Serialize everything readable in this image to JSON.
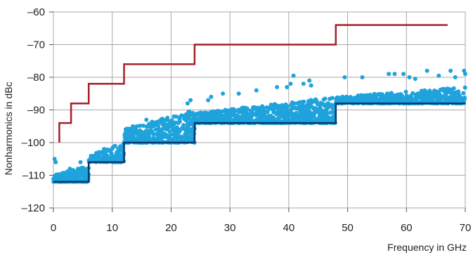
{
  "chart_data": {
    "type": "scatter",
    "title": "",
    "xlabel": "Frequency in GHz",
    "ylabel": "Nonharmonics in dBc",
    "xlim": [
      0,
      70
    ],
    "ylim": [
      -120,
      -60
    ],
    "xticks": [
      0,
      10,
      20,
      30,
      40,
      50,
      60,
      70
    ],
    "yticks": [
      -60,
      -70,
      -80,
      -90,
      -100,
      -110,
      -120
    ],
    "xtick_labels": [
      "0",
      "10",
      "20",
      "30",
      "40",
      "50",
      "60",
      "70"
    ],
    "ytick_labels": [
      "–60",
      "–70",
      "–80",
      "–90",
      "–100",
      "–110",
      "–120"
    ],
    "grid": true,
    "legend": "none",
    "series": [
      {
        "kind": "step",
        "color": "#a5202a",
        "points": [
          [
            1,
            -100
          ],
          [
            1,
            -94
          ],
          [
            3,
            -94
          ],
          [
            3,
            -88
          ],
          [
            6,
            -88
          ],
          [
            6,
            -82
          ],
          [
            12,
            -82
          ],
          [
            12,
            -76
          ],
          [
            24,
            -76
          ],
          [
            24,
            -70
          ],
          [
            48,
            -70
          ],
          [
            48,
            -64
          ],
          [
            67,
            -64
          ]
        ]
      },
      {
        "kind": "step",
        "color": "#003a70",
        "points": [
          [
            0,
            -112
          ],
          [
            6,
            -112
          ],
          [
            6,
            -106
          ],
          [
            12,
            -106
          ],
          [
            12,
            -100
          ],
          [
            24,
            -100
          ],
          [
            24,
            -94
          ],
          [
            48,
            -94
          ],
          [
            48,
            -88
          ],
          [
            70,
            -88
          ]
        ]
      },
      {
        "kind": "scatter",
        "color": "#1fa3dc",
        "bands": [
          {
            "x": [
              0,
              6
            ],
            "y_min": [
              -112,
              -112
            ],
            "y_max": [
              -110,
              -107
            ],
            "count": 260
          },
          {
            "x": [
              6,
              12
            ],
            "y_min": [
              -106,
              -106
            ],
            "y_max": [
              -104,
              -100
            ],
            "count": 140
          },
          {
            "x": [
              12,
              24
            ],
            "y_min": [
              -100,
              -100
            ],
            "y_max": [
              -96,
              -90
            ],
            "count": 420
          },
          {
            "x": [
              24,
              48
            ],
            "y_min": [
              -94,
              -94
            ],
            "y_max": [
              -91,
              -86
            ],
            "count": 780
          },
          {
            "x": [
              48,
              70
            ],
            "y_min": [
              -88,
              -88
            ],
            "y_max": [
              -86,
              -83
            ],
            "count": 520
          }
        ],
        "outliers": [
          [
            0.2,
            -105
          ],
          [
            0.4,
            -106
          ],
          [
            2.8,
            -108
          ],
          [
            4.6,
            -106
          ],
          [
            8.6,
            -102
          ],
          [
            10.5,
            -101
          ],
          [
            13.5,
            -95
          ],
          [
            15.8,
            -93
          ],
          [
            17.0,
            -94
          ],
          [
            18.3,
            -93
          ],
          [
            20.5,
            -92
          ],
          [
            22.8,
            -88
          ],
          [
            23.3,
            -87
          ],
          [
            26.3,
            -87
          ],
          [
            26.8,
            -86
          ],
          [
            28.8,
            -85
          ],
          [
            31.5,
            -85
          ],
          [
            34.5,
            -84
          ],
          [
            38.0,
            -83
          ],
          [
            39.7,
            -83
          ],
          [
            40.3,
            -82
          ],
          [
            42.5,
            -82
          ],
          [
            43.5,
            -81
          ],
          [
            43.8,
            -82.5
          ],
          [
            40.8,
            -79.5
          ],
          [
            49.5,
            -80
          ],
          [
            52.5,
            -80
          ],
          [
            57.0,
            -79
          ],
          [
            59.5,
            -79
          ],
          [
            60.5,
            -80
          ],
          [
            63.5,
            -78
          ],
          [
            65.5,
            -79.5
          ],
          [
            67.5,
            -78
          ],
          [
            68.3,
            -80
          ],
          [
            69.8,
            -78
          ],
          [
            70.0,
            -79
          ],
          [
            58.0,
            -79
          ],
          [
            61.5,
            -80.5
          ]
        ]
      }
    ]
  }
}
